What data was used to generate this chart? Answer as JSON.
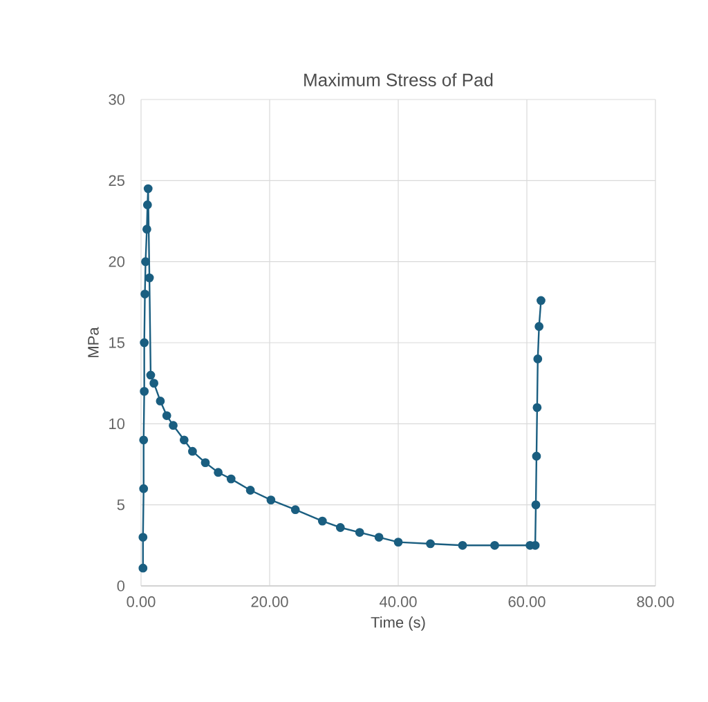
{
  "chart_data": {
    "type": "line",
    "title": "Maximum Stress of Pad",
    "xlabel": "Time (s)",
    "ylabel": "MPa",
    "xlim": [
      0,
      80
    ],
    "xticks": [
      {
        "value": 0,
        "label": "0.00"
      },
      {
        "value": 20,
        "label": "20.00"
      },
      {
        "value": 40,
        "label": "40.00"
      },
      {
        "value": 60,
        "label": "60.00"
      },
      {
        "value": 80,
        "label": "80.00"
      }
    ],
    "ylim": [
      0,
      30
    ],
    "yticks": [
      0,
      5,
      10,
      15,
      20,
      25,
      30
    ],
    "grid": true,
    "marker": "circle",
    "line_style": "solid",
    "series": [
      {
        "color": "#1a5e80",
        "x": [
          0.3,
          0.3,
          0.4,
          0.4,
          0.5,
          0.5,
          0.6,
          0.7,
          0.9,
          1.0,
          1.1,
          1.3,
          1.5,
          2.0,
          3,
          4,
          5,
          6.7,
          8,
          10,
          12,
          14,
          17,
          20.2,
          24,
          28.2,
          31,
          34,
          37,
          40,
          45,
          50,
          55,
          60.5,
          61.3,
          61.4,
          61.5,
          61.6,
          61.7,
          61.9,
          62.2
        ],
        "values": [
          1.1,
          3,
          6,
          9,
          12,
          15,
          18,
          20,
          22,
          23.5,
          24.5,
          19,
          13,
          12.5,
          11.4,
          10.5,
          9.9,
          9.0,
          8.3,
          7.6,
          7.0,
          6.6,
          5.9,
          5.3,
          4.7,
          4.0,
          3.6,
          3.3,
          3.0,
          2.7,
          2.6,
          2.5,
          2.5,
          2.5,
          2.5,
          5,
          8,
          11,
          14,
          16,
          17.6
        ]
      }
    ]
  }
}
